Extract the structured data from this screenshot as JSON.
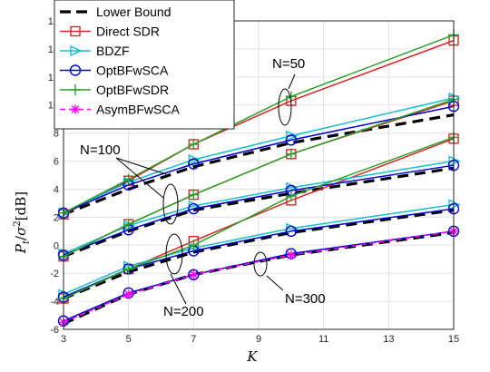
{
  "chart_data": {
    "type": "line",
    "xlabel": "K",
    "ylabel": "P_t/σ²[dB]",
    "ylabel_parts": {
      "main": "P",
      "sub": "t",
      "slash": "/",
      "sigma": "σ",
      "sup": "2",
      "unit": "[dB]"
    },
    "xlim": [
      3,
      15
    ],
    "ylim": [
      -6,
      16
    ],
    "xticks": [
      3,
      5,
      7,
      9,
      11,
      13,
      15
    ],
    "yticks": [
      -6,
      -4,
      -2,
      0,
      2,
      4,
      6,
      8,
      10,
      12,
      14,
      16
    ],
    "grid": true,
    "legend_position": "top-left",
    "series": [
      {
        "name": "Lower Bound",
        "color": "#000000",
        "dash": true,
        "marker": "none",
        "groups": [
          {
            "x": [
              3,
              5,
              7,
              10,
              15
            ],
            "y": [
              2.2,
              4.0,
              5.6,
              7.3,
              9.3
            ]
          },
          {
            "x": [
              3,
              5,
              7,
              10,
              15
            ],
            "y": [
              -0.8,
              1.0,
              2.5,
              3.7,
              5.5
            ]
          },
          {
            "x": [
              3,
              5,
              7,
              10,
              15
            ],
            "y": [
              -3.8,
              -1.9,
              -0.5,
              0.9,
              2.5
            ]
          },
          {
            "x": [
              3,
              5,
              7,
              10,
              15
            ],
            "y": [
              -5.6,
              -3.5,
              -2.1,
              -0.7,
              0.9
            ]
          }
        ]
      },
      {
        "name": "Direct SDR",
        "color": "#d62728",
        "dash": false,
        "marker": "square",
        "groups": [
          {
            "x": [
              3,
              5,
              7,
              10,
              15
            ],
            "y": [
              2.2,
              4.6,
              7.2,
              10.3,
              14.6
            ]
          },
          {
            "x": [
              3,
              5,
              7,
              10,
              15
            ],
            "y": [
              -0.8,
              1.5,
              3.6,
              6.5,
              10.3
            ]
          },
          {
            "x": [
              3,
              5,
              7,
              10,
              15
            ],
            "y": [
              -3.8,
              -1.7,
              0.3,
              3.2,
              7.6
            ]
          }
        ]
      },
      {
        "name": "BDZF",
        "color": "#17becf",
        "dash": false,
        "marker": "triangle-right",
        "groups": [
          {
            "x": [
              3,
              5,
              7,
              10,
              15
            ],
            "y": [
              2.3,
              4.5,
              6.1,
              7.8,
              10.5
            ]
          },
          {
            "x": [
              3,
              5,
              7,
              10,
              15
            ],
            "y": [
              -0.6,
              1.4,
              2.8,
              4.1,
              6.0
            ]
          },
          {
            "x": [
              3,
              5,
              7,
              10,
              15
            ],
            "y": [
              -3.5,
              -1.5,
              -0.2,
              1.2,
              2.9
            ]
          }
        ]
      },
      {
        "name": "OptBFwSCA",
        "color": "#0000cc",
        "dash": false,
        "marker": "circle",
        "groups": [
          {
            "x": [
              3,
              5,
              7,
              10,
              15
            ],
            "y": [
              2.3,
              4.3,
              5.8,
              7.5,
              9.9
            ]
          },
          {
            "x": [
              3,
              5,
              7,
              10,
              15
            ],
            "y": [
              -0.7,
              1.1,
              2.6,
              3.9,
              5.7
            ]
          },
          {
            "x": [
              3,
              5,
              7,
              10,
              15
            ],
            "y": [
              -3.7,
              -1.7,
              -0.4,
              1.0,
              2.6
            ]
          },
          {
            "x": [
              3,
              5,
              7,
              10,
              15
            ],
            "y": [
              -5.4,
              -3.4,
              -2.1,
              -0.6,
              1.0
            ]
          }
        ]
      },
      {
        "name": "OptBFwSDR",
        "color": "#2ca02c",
        "dash": false,
        "marker": "plus",
        "groups": [
          {
            "x": [
              3,
              5,
              7,
              10,
              15
            ],
            "y": [
              2.3,
              4.7,
              7.2,
              10.6,
              15.0
            ]
          },
          {
            "x": [
              3,
              5,
              7,
              10,
              15
            ],
            "y": [
              -0.8,
              1.5,
              3.6,
              6.5,
              10.4
            ]
          },
          {
            "x": [
              3,
              5,
              7,
              10,
              15
            ],
            "y": [
              -3.8,
              -1.7,
              0.0,
              3.5,
              7.7
            ]
          }
        ]
      },
      {
        "name": "AsymBFwSCA",
        "color": "#ff00ff",
        "dash": true,
        "marker": "asterisk",
        "groups": [
          {
            "x": [
              3,
              5,
              7,
              10,
              15
            ],
            "y": [
              -5.5,
              -3.5,
              -2.1,
              -0.7,
              1.0
            ]
          }
        ]
      }
    ],
    "annotations": [
      {
        "text": "N=50"
      },
      {
        "text": "N=100"
      },
      {
        "text": "N=200"
      },
      {
        "text": "N=300"
      }
    ]
  }
}
